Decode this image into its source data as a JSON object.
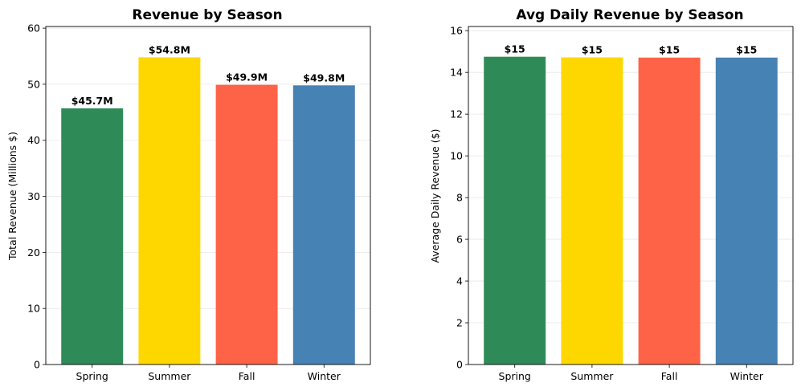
{
  "chart_data": [
    {
      "type": "bar",
      "title": "Revenue by Season",
      "xlabel": "",
      "ylabel": "Total Revenue (Millions $)",
      "categories": [
        "Spring",
        "Summer",
        "Fall",
        "Winter"
      ],
      "values": [
        45.7,
        54.8,
        49.9,
        49.8
      ],
      "data_labels": [
        "$45.7M",
        "$54.8M",
        "$49.9M",
        "$49.8M"
      ],
      "colors": [
        "#2e8b57",
        "#ffd700",
        "#ff6347",
        "#4682b4"
      ],
      "ylim": [
        0,
        60.3
      ],
      "yticks": [
        0,
        10,
        20,
        30,
        40,
        50,
        60
      ],
      "grid": "y"
    },
    {
      "type": "bar",
      "title": "Avg Daily Revenue by Season",
      "xlabel": "",
      "ylabel": "Average Daily Revenue ($)",
      "categories": [
        "Spring",
        "Summer",
        "Fall",
        "Winter"
      ],
      "values": [
        14.75,
        14.72,
        14.71,
        14.71
      ],
      "data_labels": [
        "$15",
        "$15",
        "$15",
        "$15"
      ],
      "colors": [
        "#2e8b57",
        "#ffd700",
        "#ff6347",
        "#4682b4"
      ],
      "ylim": [
        0,
        16.2
      ],
      "yticks": [
        0,
        2,
        4,
        6,
        8,
        10,
        12,
        14,
        16
      ],
      "grid": "y"
    }
  ]
}
